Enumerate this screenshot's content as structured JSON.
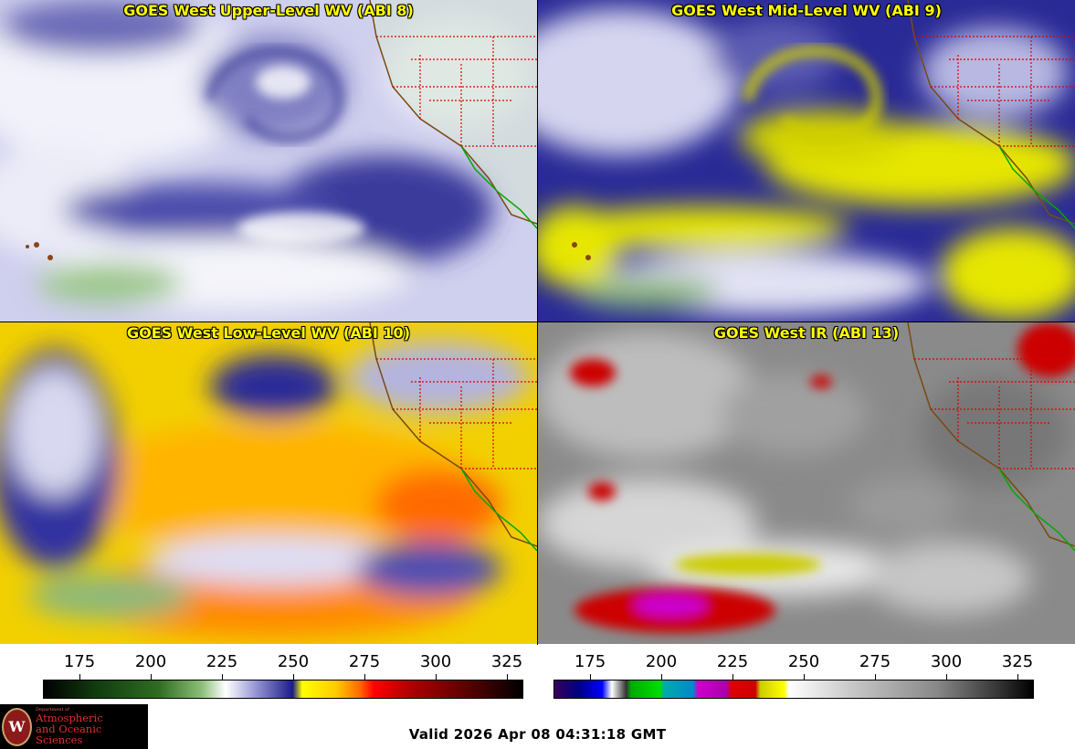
{
  "panels": [
    {
      "title": "GOES West Upper-Level WV (ABI 8)"
    },
    {
      "title": "GOES West Mid-Level WV (ABI 9)"
    },
    {
      "title": "GOES West Low-Level WV (ABI 10)"
    },
    {
      "title": "GOES West IR (ABI 13)"
    }
  ],
  "colorbars": {
    "left_ticks": [
      "175",
      "200",
      "225",
      "250",
      "275",
      "300",
      "325"
    ],
    "right_ticks": [
      "175",
      "200",
      "225",
      "250",
      "275",
      "300",
      "325"
    ]
  },
  "logo": {
    "dept": "Department of",
    "line1": "Atmospheric",
    "line2": "and Oceanic Sciences",
    "seal_letter": "W"
  },
  "valid_time": "Valid 2026 Apr 08 04:31:18 GMT",
  "colors": {
    "title_text": "#ffff00",
    "state_border": "#dd0000",
    "coastline": "#7a4a10",
    "mexico_coast": "#00aa00"
  }
}
